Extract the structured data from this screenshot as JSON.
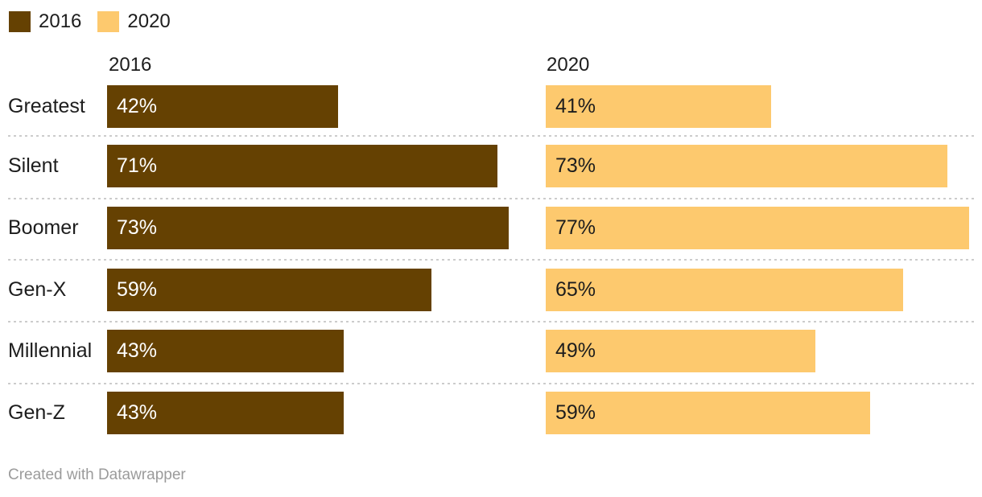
{
  "chart_data": {
    "type": "bar",
    "orientation": "horizontal-split-columns",
    "categories": [
      "Greatest",
      "Silent",
      "Boomer",
      "Gen-X",
      "Millennial",
      "Gen-Z"
    ],
    "series": [
      {
        "name": "2016",
        "values": [
          42,
          71,
          73,
          59,
          43,
          43
        ]
      },
      {
        "name": "2020",
        "values": [
          41,
          73,
          77,
          65,
          49,
          59
        ]
      }
    ],
    "value_suffix": "%",
    "xlim": [
      0,
      100
    ],
    "legend_position": "top-left",
    "column_headers": [
      "2016",
      "2020"
    ],
    "grid": "dotted-row-dividers",
    "title": "",
    "xlabel": "",
    "ylabel": ""
  },
  "legend": {
    "items": [
      {
        "label": "2016",
        "color_key": "bar2016"
      },
      {
        "label": "2020",
        "color_key": "bar2020"
      }
    ]
  },
  "columns": {
    "col1_header": "2016",
    "col2_header": "2020"
  },
  "rows": [
    {
      "label": "Greatest",
      "v2016": "42%",
      "v2020": "41%"
    },
    {
      "label": "Silent",
      "v2016": "71%",
      "v2020": "73%"
    },
    {
      "label": "Boomer",
      "v2016": "73%",
      "v2020": "77%"
    },
    {
      "label": "Gen-X",
      "v2016": "59%",
      "v2020": "65%"
    },
    {
      "label": "Millennial",
      "v2016": "43%",
      "v2020": "49%"
    },
    {
      "label": "Gen-Z",
      "v2016": "43%",
      "v2020": "59%"
    }
  ],
  "footer": {
    "credit": "Created with Datawrapper"
  },
  "colors": {
    "bar2016": "#654102",
    "bar2020": "#fdc96e",
    "text": "#1d1d1d",
    "value_on_dark": "#ffffff",
    "value_on_light": "#1d1d1d",
    "footer_text": "#9b9b9b",
    "divider": "#cccccc",
    "background": "#ffffff"
  }
}
